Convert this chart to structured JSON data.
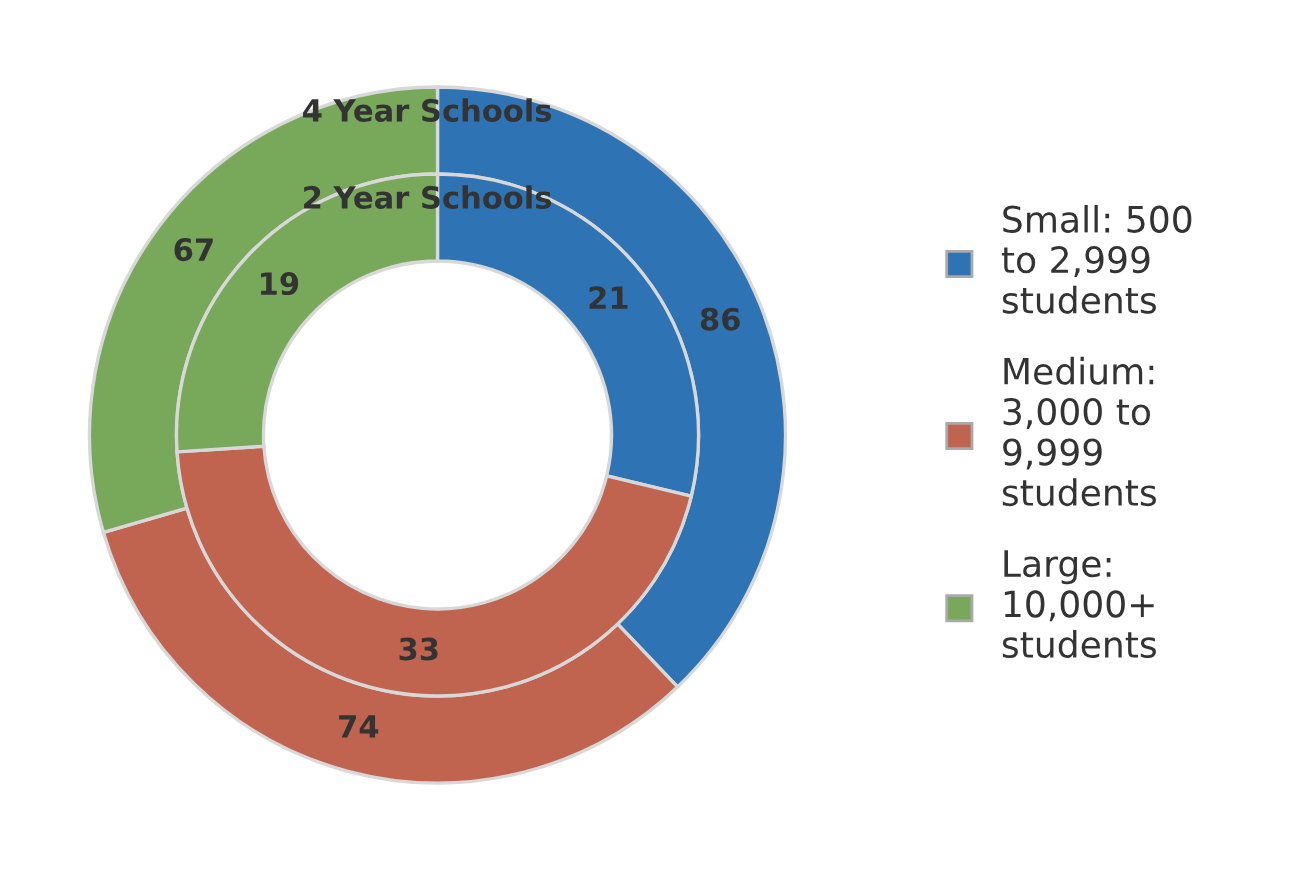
{
  "chart_data": {
    "type": "donut",
    "categories": [
      "Small: 500\nto 2,999\nstudents",
      "Medium:\n3,000 to\n9,999\nstudents",
      "Large:\n10,000+\nstudents"
    ],
    "colors": [
      "#2e74b5",
      "#c0634f",
      "#78a85a"
    ],
    "series": [
      {
        "name": "4 Year Schools",
        "values": [
          86,
          74,
          67
        ]
      },
      {
        "name": "2 Year Schools",
        "values": [
          21,
          33,
          19
        ]
      }
    ],
    "data_labels": true,
    "legend": "right"
  }
}
